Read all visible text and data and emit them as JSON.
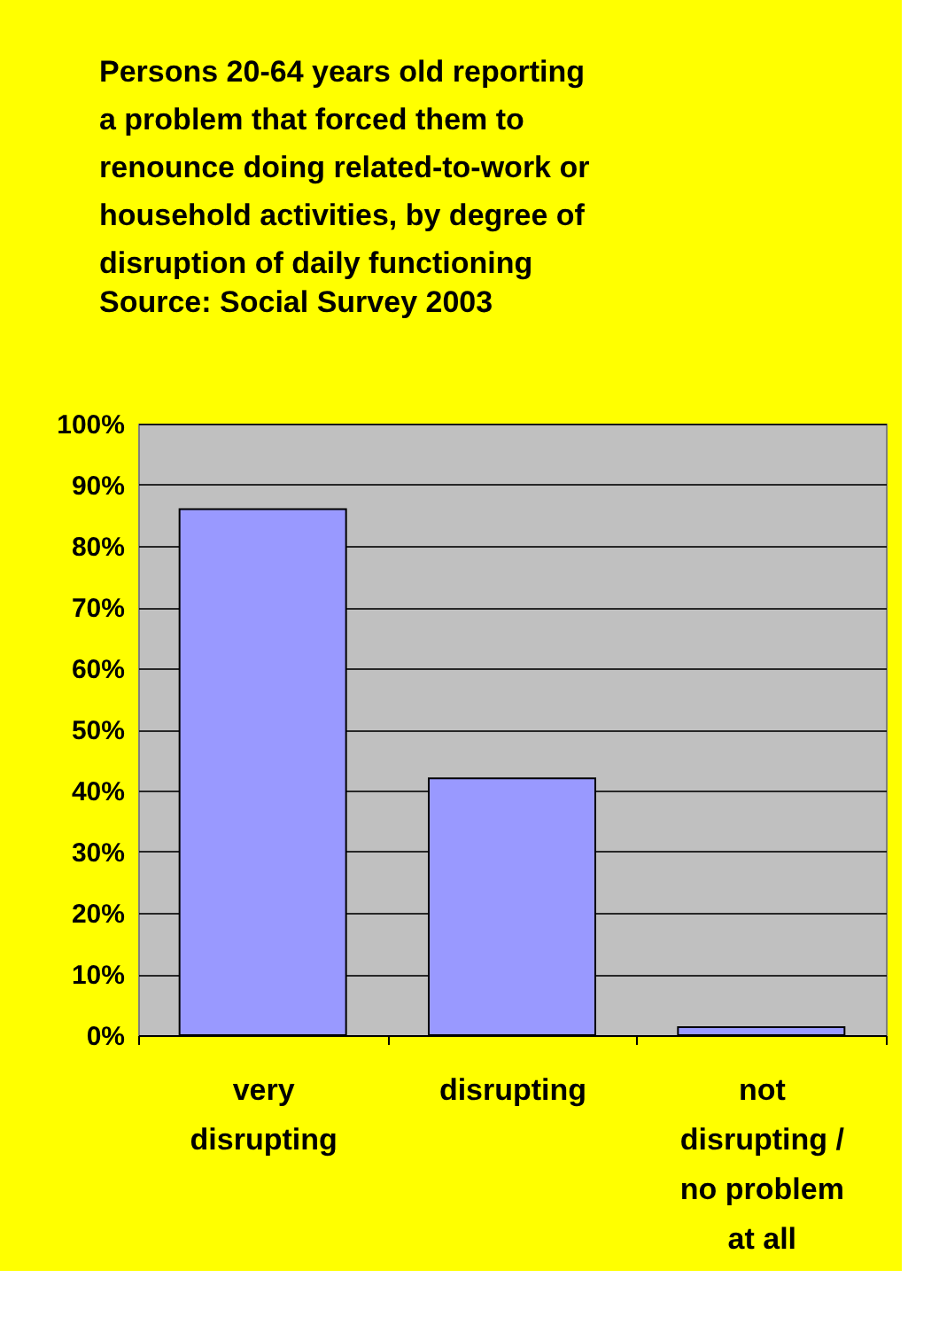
{
  "chart_data": {
    "type": "bar",
    "title": "Persons 20-64 years old reporting a problem that forced them to renounce doing related-to-work or household activities, by degree of disruption of daily functioning",
    "annotations": [
      "Source: Social Survey 2003"
    ],
    "categories": [
      "very disrupting",
      "disrupting",
      "not disrupting / no problem at all"
    ],
    "values": [
      86,
      42,
      1.3
    ],
    "color": "#9999ff",
    "ylim": [
      0,
      100
    ],
    "yticks": [
      {
        "value": 0,
        "label": "0%"
      },
      {
        "value": 10,
        "label": "10%"
      },
      {
        "value": 20,
        "label": "20%"
      },
      {
        "value": 30,
        "label": "30%"
      },
      {
        "value": 40,
        "label": "40%"
      },
      {
        "value": 50,
        "label": "50%"
      },
      {
        "value": 60,
        "label": "60%"
      },
      {
        "value": 70,
        "label": "70%"
      },
      {
        "value": 80,
        "label": "80%"
      },
      {
        "value": 90,
        "label": "90%"
      },
      {
        "value": 100,
        "label": "100%"
      }
    ],
    "grid": "y"
  }
}
